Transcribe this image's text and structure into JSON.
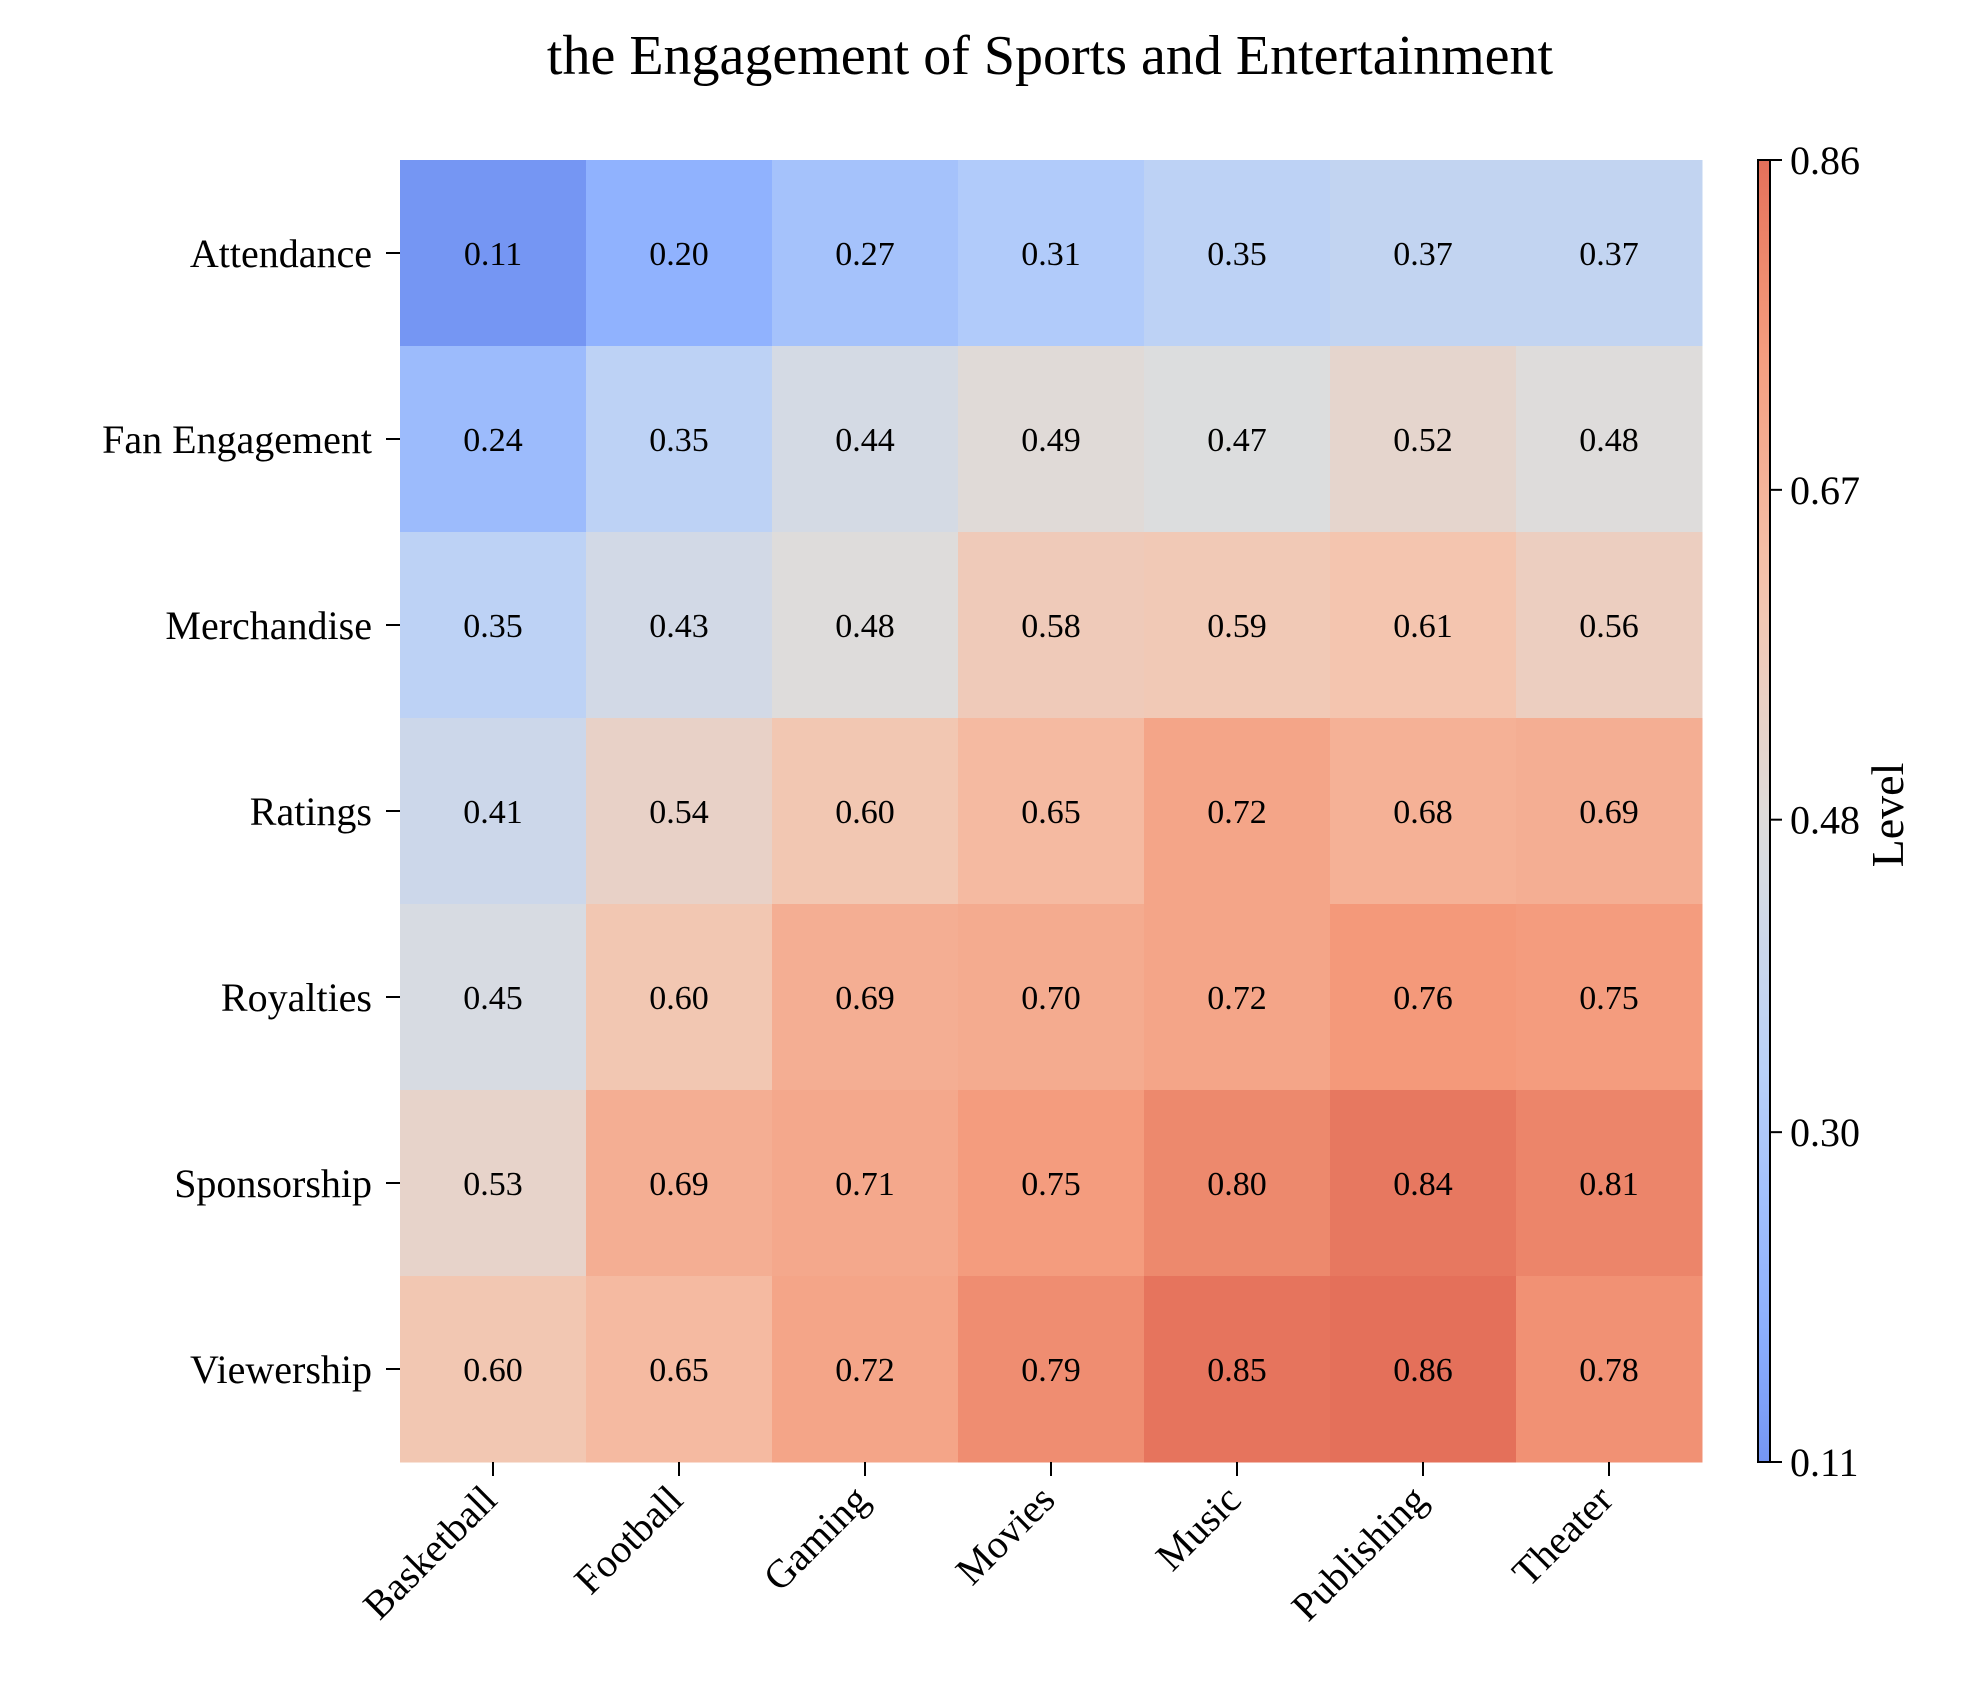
{
  "chart_data": {
    "type": "heatmap",
    "title": "the Engagement of Sports and Entertainment",
    "x_categories": [
      "Basketball",
      "Football",
      "Gaming",
      "Movies",
      "Music",
      "Publishing",
      "Theater"
    ],
    "y_categories": [
      "Attendance",
      "Fan Engagement",
      "Merchandise",
      "Ratings",
      "Royalties",
      "Sponsorship",
      "Viewership"
    ],
    "values": [
      [
        0.11,
        0.2,
        0.27,
        0.31,
        0.35,
        0.37,
        0.37
      ],
      [
        0.24,
        0.35,
        0.44,
        0.49,
        0.47,
        0.52,
        0.48
      ],
      [
        0.35,
        0.43,
        0.48,
        0.58,
        0.59,
        0.61,
        0.56
      ],
      [
        0.41,
        0.54,
        0.6,
        0.65,
        0.72,
        0.68,
        0.69
      ],
      [
        0.45,
        0.6,
        0.69,
        0.7,
        0.72,
        0.76,
        0.75
      ],
      [
        0.53,
        0.69,
        0.71,
        0.75,
        0.8,
        0.84,
        0.81
      ],
      [
        0.6,
        0.65,
        0.72,
        0.79,
        0.85,
        0.86,
        0.78
      ]
    ],
    "colorbar": {
      "label": "Level",
      "min": 0.11,
      "max": 0.86,
      "ticks": [
        "0.11",
        "0.30",
        "0.48",
        "0.67",
        "0.86"
      ],
      "colormap": "coolwarm"
    }
  }
}
